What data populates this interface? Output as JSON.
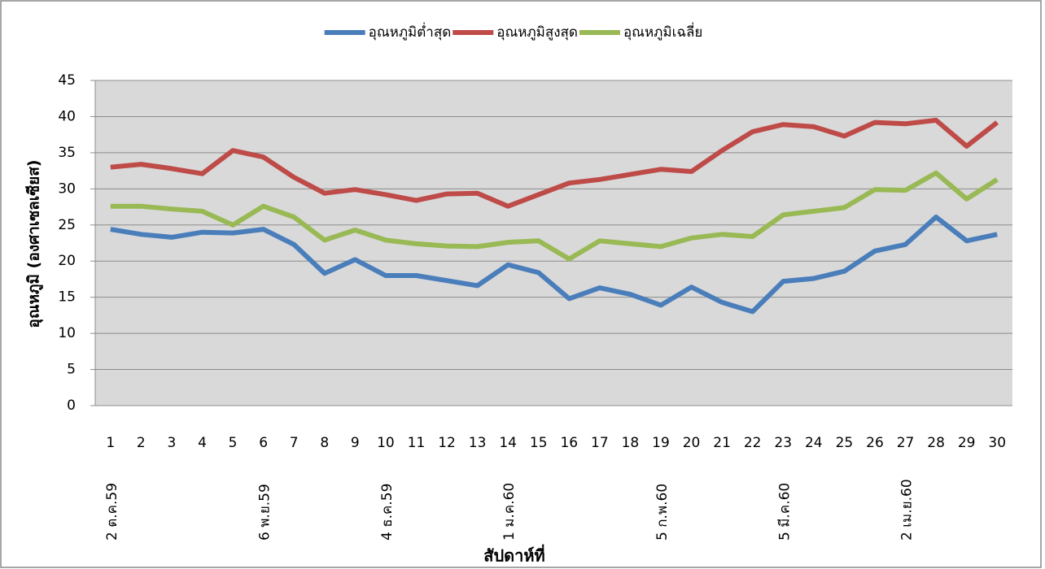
{
  "chart_data": {
    "type": "line",
    "x_title": "สัปดาห์ที่",
    "y_title": "อุณหภูมิ (องศาเซลเซียส)",
    "categories": [
      "1",
      "2",
      "3",
      "4",
      "5",
      "6",
      "7",
      "8",
      "9",
      "10",
      "11",
      "12",
      "13",
      "14",
      "15",
      "16",
      "17",
      "18",
      "19",
      "20",
      "21",
      "22",
      "23",
      "24",
      "25",
      "26",
      "27",
      "28",
      "29",
      "30"
    ],
    "date_labels": [
      "2 ต.ค.59",
      null,
      null,
      null,
      null,
      "6 พ.ย.59",
      null,
      null,
      null,
      "4 ธ.ค.59",
      null,
      null,
      null,
      "1 ม.ค.60",
      null,
      null,
      null,
      null,
      "5 ก.พ.60",
      null,
      null,
      null,
      "5 มี.ค.60",
      null,
      null,
      null,
      "2 เม.ย.60",
      null,
      null,
      null
    ],
    "series": [
      {
        "name": "อุณหภูมิต่ำสุด",
        "color": "#4a7ebb",
        "values": [
          24.4,
          23.7,
          23.3,
          24.0,
          23.9,
          24.4,
          22.3,
          18.3,
          20.2,
          18.0,
          18.0,
          17.3,
          16.6,
          19.5,
          18.4,
          14.8,
          16.3,
          15.4,
          13.9,
          16.4,
          14.3,
          13.0,
          17.2,
          17.6,
          18.6,
          21.4,
          22.3,
          26.1,
          22.8,
          23.7
        ]
      },
      {
        "name": "อุณหภูมิสูงสุด",
        "color": "#be4b48",
        "values": [
          33.0,
          33.4,
          32.8,
          32.1,
          35.3,
          34.4,
          31.6,
          29.4,
          29.9,
          29.2,
          28.4,
          29.3,
          29.4,
          27.6,
          29.2,
          30.8,
          31.3,
          32.0,
          32.7,
          32.4,
          35.3,
          37.9,
          38.9,
          38.6,
          37.3,
          39.2,
          39.0,
          39.5,
          35.9,
          39.2
        ]
      },
      {
        "name": "อุณหภูมิเฉลี่ย",
        "color": "#98b954",
        "values": [
          27.6,
          27.6,
          27.2,
          26.9,
          25.0,
          27.6,
          26.1,
          22.9,
          24.3,
          22.9,
          22.4,
          22.1,
          22.0,
          22.6,
          22.8,
          20.3,
          22.8,
          22.4,
          22.0,
          23.2,
          23.7,
          23.4,
          26.4,
          26.9,
          27.4,
          29.9,
          29.8,
          32.2,
          28.6,
          31.3
        ]
      }
    ],
    "ylim": [
      0,
      45
    ],
    "yticks": [
      0,
      5,
      10,
      15,
      20,
      25,
      30,
      35,
      40,
      45
    ],
    "grid": true,
    "legend": "top"
  }
}
